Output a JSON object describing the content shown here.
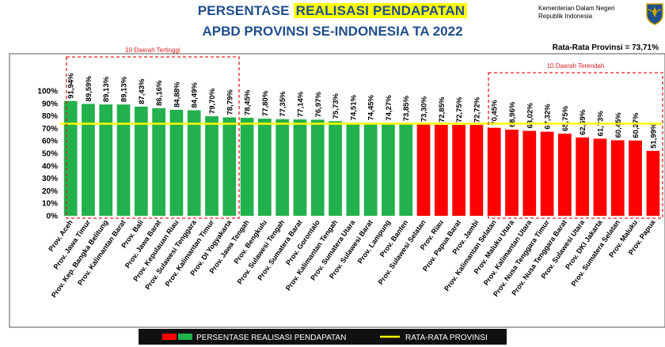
{
  "header": {
    "title_line1_part1": "PERSENTASE ",
    "title_line1_highlight": "REALISASI PENDAPATAN",
    "title_line2": "APBD PROVINSI SE-INDONESIA TA 2022",
    "ministry_line1": "Kementerian Dalam Negeri",
    "ministry_line2": "Republik Indonesia",
    "logo_icon": "garuda-emblem-icon",
    "average_label": "Rata-Rata Provinsi = 73,71%"
  },
  "annotations": {
    "top10_label": "10 Daerah Tertinggi",
    "bottom10_label": "10 Daerah Terendah"
  },
  "legend": {
    "series_label": "PERSENTASE REALISASI PENDAPATAN",
    "average_line_label": "RATA-RATA PROVINSI"
  },
  "colors": {
    "green": "#22b14c",
    "red": "#ff0000",
    "average_line": "#ffff00",
    "title": "#1f4e8c",
    "annotation_box": "#e02020"
  },
  "chart_data": {
    "type": "bar",
    "categories": [
      "Prov. Aceh",
      "Prov. Jawa Timur",
      "Prov. Kep. Bangka Belitung",
      "Prov. Kalimantan Barat",
      "Prov. Bali",
      "Prov. Jawa Barat",
      "Prov. Kepulauan Riau",
      "Prov. Sulawesi Tenggara",
      "Prov. Kalimantan Timur",
      "Prov. DI Yogyakarta",
      "Prov. Jawa Tengah",
      "Prov. Bengkulu",
      "Prov. Sulawesi Tengah",
      "Prov. Sumatera Barat",
      "Prov. Gorontalo",
      "Prov. Kalimantan Tengah",
      "Prov. Sumatera Utara",
      "Prov. Sulawesi Barat",
      "Prov. Lampung",
      "Prov. Banten",
      "Prov. Sulawesi Selatan",
      "Prov. Riau",
      "Prov. Papua Barat",
      "Prov. Jambi",
      "Prov. Kalimantan Selatan",
      "Prov. Maluku Utara",
      "Prov. Kalimantan Utara",
      "Prov. Nusa Tenggara Timur",
      "Prov. Nusa Tenggara Barat",
      "Prov. Sulawesi Utara",
      "Prov. DKI Jakarta",
      "Prov. Sumatera Selatan",
      "Prov. Maluku",
      "Prov. Papua"
    ],
    "values": [
      91.94,
      89.59,
      89.13,
      89.13,
      87.43,
      86.16,
      84.88,
      84.49,
      79.7,
      78.79,
      78.45,
      77.8,
      77.35,
      77.14,
      76.97,
      75.73,
      74.51,
      74.45,
      74.27,
      73.85,
      73.3,
      72.85,
      72.75,
      72.72,
      70.45,
      68.96,
      68.02,
      67.32,
      65.75,
      62.69,
      61.73,
      60.45,
      60.27,
      51.99
    ],
    "value_labels": [
      "91,94%",
      "89,59%",
      "89,13%",
      "89,13%",
      "87,43%",
      "86,16%",
      "84,88%",
      "84,49%",
      "79,70%",
      "78,79%",
      "78,45%",
      "77,80%",
      "77,35%",
      "77,14%",
      "76,97%",
      "75,73%",
      "74,51%",
      "74,45%",
      "74,27%",
      "73,85%",
      "73,30%",
      "72,85%",
      "72,75%",
      "72,72%",
      "70,45%",
      "68,96%",
      "68,02%",
      "67,32%",
      "65,75%",
      "62,69%",
      "61,73%",
      "60,45%",
      "60,27%",
      "51,99%"
    ],
    "colors_by_bar": [
      "green",
      "green",
      "green",
      "green",
      "green",
      "green",
      "green",
      "green",
      "green",
      "green",
      "green",
      "green",
      "green",
      "green",
      "green",
      "green",
      "green",
      "green",
      "green",
      "green",
      "red",
      "red",
      "red",
      "red",
      "red",
      "red",
      "red",
      "red",
      "red",
      "red",
      "red",
      "red",
      "red",
      "red"
    ],
    "average": 73.71,
    "yticks": [
      "0%",
      "10%",
      "20%",
      "30%",
      "40%",
      "50%",
      "60%",
      "70%",
      "80%",
      "90%",
      "100%"
    ],
    "ylim": [
      0,
      100
    ],
    "grid": false,
    "legend_position": "bottom"
  }
}
